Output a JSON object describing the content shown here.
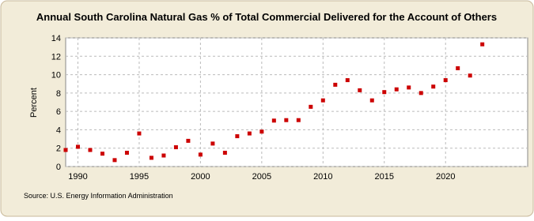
{
  "chart_data": {
    "type": "scatter",
    "title": "Annual South Carolina Natural Gas % of Total Commercial Delivered for the Account of Others",
    "y_label": "Percent",
    "source": "Source: U.S. Energy Information Administration",
    "x": [
      1989,
      1990,
      1991,
      1992,
      1993,
      1994,
      1995,
      1996,
      1997,
      1998,
      1999,
      2000,
      2001,
      2002,
      2003,
      2004,
      2005,
      2006,
      2007,
      2008,
      2009,
      2010,
      2011,
      2012,
      2013,
      2014,
      2015,
      2016,
      2017,
      2018,
      2019,
      2020,
      2021,
      2022,
      2023
    ],
    "values": [
      1.8,
      2.15,
      1.8,
      1.4,
      0.7,
      1.5,
      3.6,
      0.95,
      1.2,
      2.1,
      2.8,
      1.3,
      2.5,
      1.5,
      3.3,
      3.6,
      3.8,
      5.0,
      5.05,
      5.05,
      6.5,
      7.2,
      8.9,
      9.4,
      8.3,
      7.2,
      8.1,
      8.4,
      8.6,
      8.0,
      8.7,
      9.4,
      10.7,
      9.9,
      13.3
    ],
    "color": "#cc0000",
    "xlim": [
      1989,
      2026.7
    ],
    "xticks": [
      1990,
      1995,
      2000,
      2005,
      2010,
      2015,
      2020
    ],
    "ylim": [
      0,
      14
    ],
    "yticks": [
      0,
      2,
      4,
      6,
      8,
      10,
      12,
      14
    ],
    "grid": true
  }
}
